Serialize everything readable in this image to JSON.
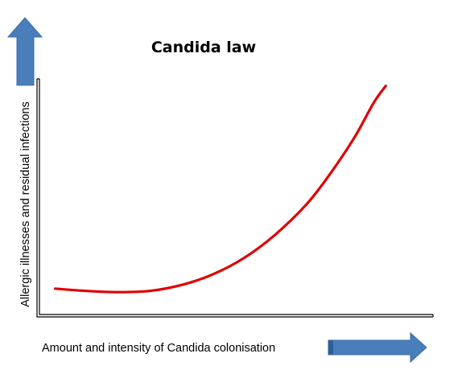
{
  "chart_data": {
    "type": "line",
    "title": "Candida law",
    "xlabel": "Amount and intensity of Candida colonisation",
    "ylabel": "Allergic illnesses and residual infections",
    "grid": false,
    "legend": "none",
    "axis_ticks": false,
    "xlim": [
      0,
      1
    ],
    "ylim": [
      0,
      1
    ],
    "series": [
      {
        "color": "#e00000",
        "x": [
          0.04,
          0.12,
          0.2,
          0.28,
          0.36,
          0.44,
          0.52,
          0.6,
          0.68,
          0.74,
          0.8,
          0.85,
          0.88
        ],
        "y": [
          0.11,
          0.1,
          0.095,
          0.1,
          0.125,
          0.17,
          0.24,
          0.34,
          0.47,
          0.6,
          0.75,
          0.9,
          0.97
        ]
      }
    ],
    "arrow_color": "#4a7ebb"
  }
}
